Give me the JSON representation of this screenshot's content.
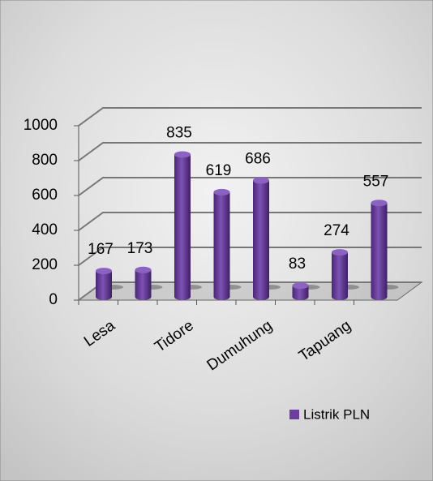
{
  "chart_data": {
    "type": "bar",
    "categories": [
      "Lesa",
      null,
      "Tidore",
      null,
      "Dumuhung",
      null,
      "Tapuang",
      null
    ],
    "series": [
      {
        "name": "Listrik PLN",
        "color": "#6b3fa0",
        "values": [
          167,
          173,
          835,
          619,
          686,
          83,
          274,
          557
        ]
      }
    ],
    "ylim": [
      0,
      1000
    ],
    "yticks": [
      0,
      200,
      400,
      600,
      800,
      1000
    ],
    "grid": true,
    "legend": "bottom-right"
  }
}
